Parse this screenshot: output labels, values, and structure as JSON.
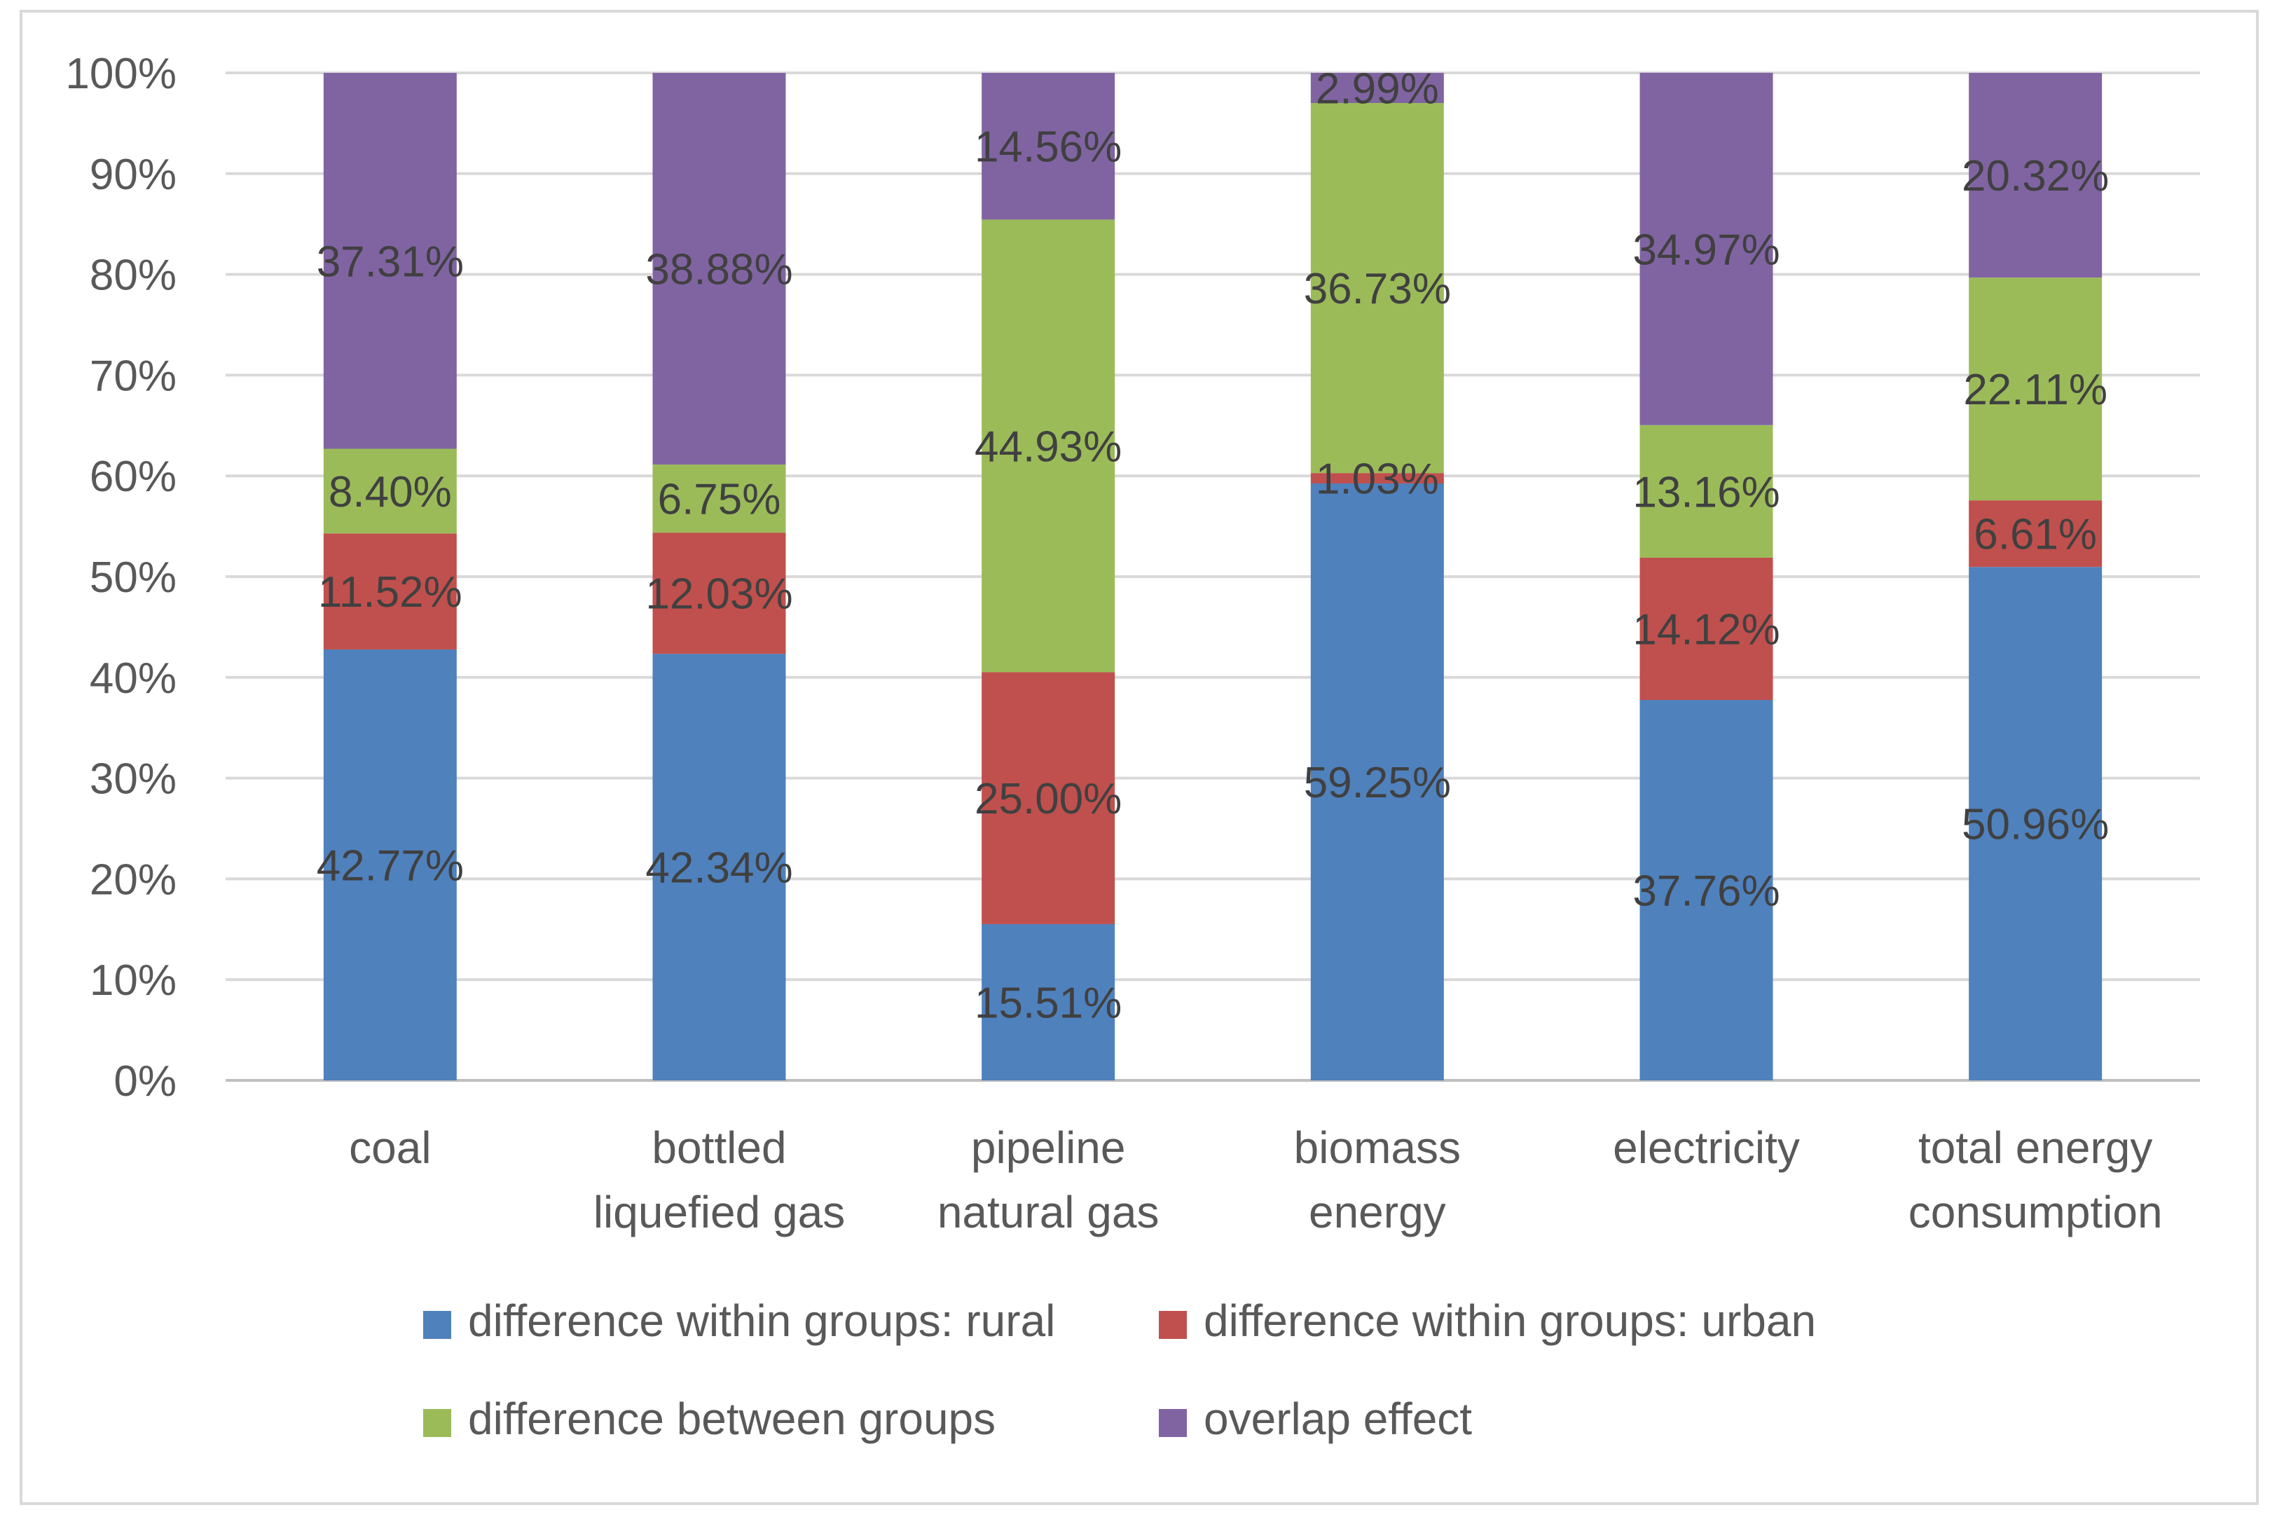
{
  "chart_data": {
    "type": "bar",
    "stacked": true,
    "title": "",
    "xlabel": "",
    "ylabel": "",
    "ylim": [
      0,
      100
    ],
    "y_ticks": [
      "0%",
      "10%",
      "20%",
      "30%",
      "40%",
      "50%",
      "60%",
      "70%",
      "80%",
      "90%",
      "100%"
    ],
    "grid": true,
    "legend_position": "bottom",
    "categories": [
      [
        "coal"
      ],
      [
        "bottled",
        "liquefied gas"
      ],
      [
        "pipeline",
        "natural gas"
      ],
      [
        "biomass",
        "energy"
      ],
      [
        "electricity"
      ],
      [
        "total energy",
        "consumption"
      ]
    ],
    "series": [
      {
        "name": "difference within groups: rural",
        "color": "#4f81bd",
        "values": [
          42.77,
          42.34,
          15.51,
          59.25,
          37.76,
          50.96
        ],
        "labels": [
          "42.77%",
          "42.34%",
          "15.51%",
          "59.25%",
          "37.76%",
          "50.96%"
        ]
      },
      {
        "name": "difference within groups: urban",
        "color": "#c0504d",
        "values": [
          11.52,
          12.03,
          25.0,
          1.03,
          14.12,
          6.61
        ],
        "labels": [
          "11.52%",
          "12.03%",
          "25.00%",
          "1.03%",
          "14.12%",
          "6.61%"
        ]
      },
      {
        "name": "difference between groups",
        "color": "#9bbb59",
        "values": [
          8.4,
          6.75,
          44.93,
          36.73,
          13.16,
          22.11
        ],
        "labels": [
          "8.40%",
          "6.75%",
          "44.93%",
          "36.73%",
          "13.16%",
          "22.11%"
        ]
      },
      {
        "name": "overlap effect",
        "color": "#8064a2",
        "values": [
          37.31,
          38.88,
          14.56,
          2.99,
          34.97,
          20.32
        ],
        "labels": [
          "37.31%",
          "38.88%",
          "14.56%",
          "2.99%",
          "34.97%",
          "20.32%"
        ]
      }
    ]
  }
}
